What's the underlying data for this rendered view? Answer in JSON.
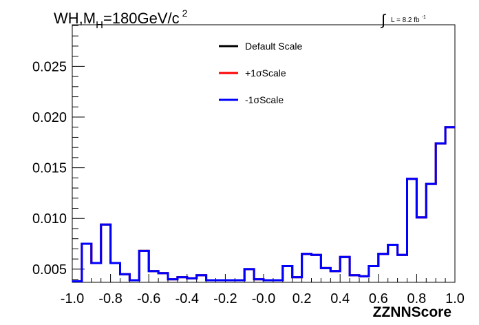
{
  "chart_data": {
    "type": "line",
    "title_main": "WH,M",
    "title_sub": "H",
    "title_rest": "=180GeV/c",
    "title_sup": "2",
    "lumi_label": "L = 8.2 fb",
    "lumi_sup": "-1",
    "xlabel": "ZZNNScore",
    "ylabel": "",
    "xlim": [
      -1.0,
      1.0
    ],
    "ylim": [
      0.0037,
      0.0291
    ],
    "x_ticks": [
      -1.0,
      -0.8,
      -0.6,
      -0.4,
      -0.2,
      0.0,
      0.2,
      0.4,
      0.6,
      0.8,
      1.0
    ],
    "x_tick_labels": [
      "-1.0",
      "-0.8",
      "-0.6",
      "-0.4",
      "-0.2",
      "-0.0",
      "0.2",
      "0.4",
      "0.6",
      "0.8",
      "1.0"
    ],
    "y_ticks": [
      0.005,
      0.01,
      0.015,
      0.02,
      0.025
    ],
    "y_tick_labels": [
      "0.005",
      "0.010",
      "0.015",
      "0.020",
      "0.025"
    ],
    "grid": false,
    "legend_position": "top-center",
    "bin_edges": [
      -1.0,
      -0.95,
      -0.9,
      -0.85,
      -0.8,
      -0.75,
      -0.7,
      -0.65,
      -0.6,
      -0.55,
      -0.5,
      -0.45,
      -0.4,
      -0.35,
      -0.3,
      -0.25,
      -0.2,
      -0.15,
      -0.1,
      -0.05,
      0.0,
      0.05,
      0.1,
      0.15,
      0.2,
      0.25,
      0.3,
      0.35,
      0.4,
      0.45,
      0.5,
      0.55,
      0.6,
      0.65,
      0.7,
      0.75,
      0.8,
      0.85,
      0.9,
      0.95,
      1.0
    ],
    "series": [
      {
        "name": "Default Scale",
        "color": "#000000",
        "values": [
          0.0038,
          0.0075,
          0.0056,
          0.0094,
          0.0056,
          0.0045,
          0.0039,
          0.0068,
          0.0048,
          0.0046,
          0.004,
          0.0042,
          0.0041,
          0.0044,
          0.0039,
          0.0039,
          0.0039,
          0.0039,
          0.005,
          0.004,
          0.0039,
          0.0039,
          0.0053,
          0.0042,
          0.0065,
          0.0064,
          0.0051,
          0.0048,
          0.0062,
          0.0044,
          0.0043,
          0.0053,
          0.0065,
          0.0074,
          0.0064,
          0.0139,
          0.0101,
          0.0134,
          0.0174,
          0.019
        ]
      },
      {
        "name": "+1σScale",
        "color": "#ff0000",
        "values": [
          0.0038,
          0.0075,
          0.0056,
          0.0094,
          0.0056,
          0.0045,
          0.0039,
          0.0068,
          0.0048,
          0.0046,
          0.004,
          0.0042,
          0.0041,
          0.0044,
          0.0039,
          0.0039,
          0.0039,
          0.0039,
          0.005,
          0.004,
          0.0039,
          0.0039,
          0.0053,
          0.0042,
          0.0065,
          0.0064,
          0.0051,
          0.0048,
          0.0062,
          0.0044,
          0.0043,
          0.0053,
          0.0065,
          0.0074,
          0.0064,
          0.0139,
          0.0101,
          0.0134,
          0.0174,
          0.019
        ]
      },
      {
        "name": "-1σScale",
        "color": "#0000ff",
        "values": [
          0.0038,
          0.0075,
          0.0056,
          0.0094,
          0.0056,
          0.0045,
          0.0039,
          0.0068,
          0.0048,
          0.0046,
          0.004,
          0.0042,
          0.0041,
          0.0044,
          0.0039,
          0.0039,
          0.0039,
          0.0039,
          0.005,
          0.004,
          0.0039,
          0.0039,
          0.0053,
          0.0042,
          0.0065,
          0.0064,
          0.0051,
          0.0048,
          0.0062,
          0.0044,
          0.0043,
          0.0053,
          0.0065,
          0.0074,
          0.0064,
          0.0139,
          0.0101,
          0.0134,
          0.0174,
          0.019
        ]
      }
    ]
  }
}
